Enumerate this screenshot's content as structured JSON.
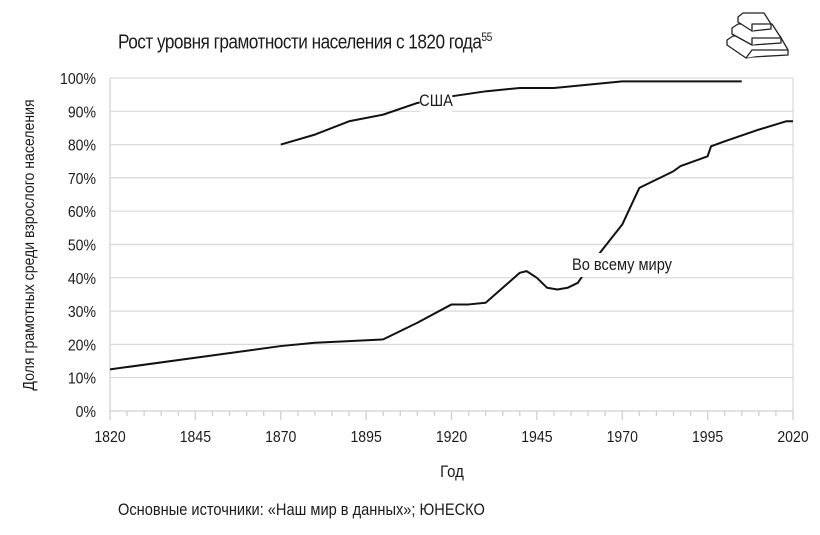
{
  "chart_data": {
    "type": "line",
    "title": "Рост уровня грамотности населения с 1820 года",
    "title_footnote": "55",
    "xlabel": "Год",
    "ylabel": "Доля грамотных среди взрослого населения",
    "xlim": [
      1820,
      2020
    ],
    "ylim": [
      0,
      100
    ],
    "x_ticks": [
      "1820",
      "1845",
      "1870",
      "1895",
      "1920",
      "1945",
      "1970",
      "1995",
      "2020"
    ],
    "y_ticks": [
      "0%",
      "10%",
      "20%",
      "30%",
      "40%",
      "50%",
      "60%",
      "70%",
      "80%",
      "90%",
      "100%"
    ],
    "grid": true,
    "series": [
      {
        "name": "США",
        "x": [
          1870,
          1880,
          1890,
          1900,
          1910,
          1920,
          1930,
          1940,
          1950,
          1970,
          2005
        ],
        "y": [
          80,
          83,
          87,
          89,
          92.5,
          94.5,
          96,
          97,
          97,
          99,
          99
        ]
      },
      {
        "name": "Во всему миру",
        "x": [
          1820,
          1870,
          1880,
          1890,
          1900,
          1910,
          1920,
          1925,
          1930,
          1935,
          1940,
          1942,
          1945,
          1948,
          1951,
          1954,
          1957,
          1960,
          1965,
          1970,
          1975,
          1985,
          1987,
          1995,
          1996,
          2000,
          2010,
          2018,
          2020
        ],
        "y": [
          12.5,
          19.5,
          20.5,
          21,
          21.5,
          26.5,
          32,
          32,
          32.5,
          37,
          41.5,
          42,
          40,
          37,
          36.5,
          37,
          38.5,
          43,
          49.5,
          56,
          67,
          72,
          73.5,
          76.5,
          79.5,
          81,
          84.5,
          87,
          87
        ]
      }
    ]
  },
  "source": "Основные источники: «Наш мир в данных»; ЮНЕСКО",
  "icon": "book-stack-icon"
}
